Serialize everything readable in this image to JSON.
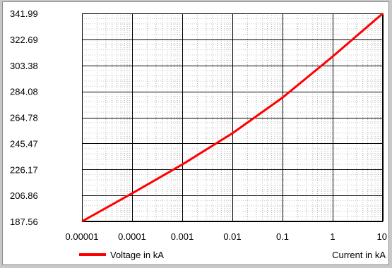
{
  "chart_data": {
    "type": "line",
    "x_scale": "log",
    "xlim": [
      1e-05,
      10
    ],
    "ylim": [
      187.56,
      341.99
    ],
    "x_ticks": [
      "0.00001",
      "0.0001",
      "0.001",
      "0.01",
      "0.1",
      "1",
      "10"
    ],
    "y_ticks": [
      "341.99",
      "322.69",
      "303.38",
      "284.08",
      "264.78",
      "245.47",
      "226.17",
      "206.86",
      "187.56"
    ],
    "xlabel": "Current in kA",
    "grid": true,
    "legend_position": "bottom-left",
    "series": [
      {
        "name": "Voltage in kA",
        "color": "#ff0000",
        "x": [
          1e-05,
          0.0001,
          0.001,
          0.01,
          0.1,
          1,
          10
        ],
        "y": [
          187.56,
          208.4,
          229.8,
          253.0,
          279.5,
          310.0,
          341.99
        ]
      }
    ]
  }
}
